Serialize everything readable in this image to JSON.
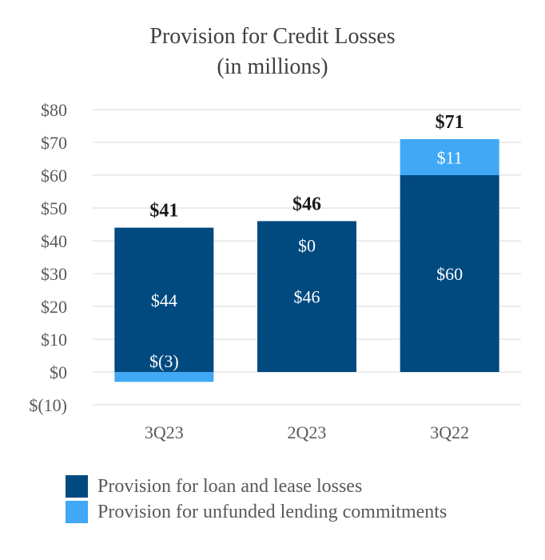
{
  "chart_data": {
    "type": "bar",
    "stacked": true,
    "title": "Provision for Credit Losses",
    "subtitle": "(in millions)",
    "categories": [
      "3Q23",
      "2Q23",
      "3Q22"
    ],
    "series": [
      {
        "name": "Provision for loan and lease losses",
        "values": [
          44,
          46,
          60
        ],
        "labels": [
          "$44",
          "$46",
          "$60"
        ],
        "color": "#004a80"
      },
      {
        "name": "Provision for unfunded lending commitments",
        "values": [
          -3,
          0,
          11
        ],
        "labels": [
          "$(3)",
          "$0",
          "$11"
        ],
        "color": "#40a8f5"
      }
    ],
    "totals": [
      "$41",
      "$46",
      "$71"
    ],
    "ylim": [
      -10,
      80
    ],
    "yticks": [
      80,
      70,
      60,
      50,
      40,
      30,
      20,
      10,
      0,
      -10
    ],
    "ytick_labels": [
      "$80",
      "$70",
      "$60",
      "$50",
      "$40",
      "$30",
      "$20",
      "$10",
      "$0",
      "$(10)"
    ],
    "xlabel": "",
    "ylabel": "",
    "grid": true,
    "legend_position": "bottom",
    "colors": {
      "grid": "#d9d9d9",
      "axis_text": "#595959",
      "title_text": "#404040",
      "total_text": "#1a1a1a",
      "label_text": "#ffffff"
    }
  }
}
